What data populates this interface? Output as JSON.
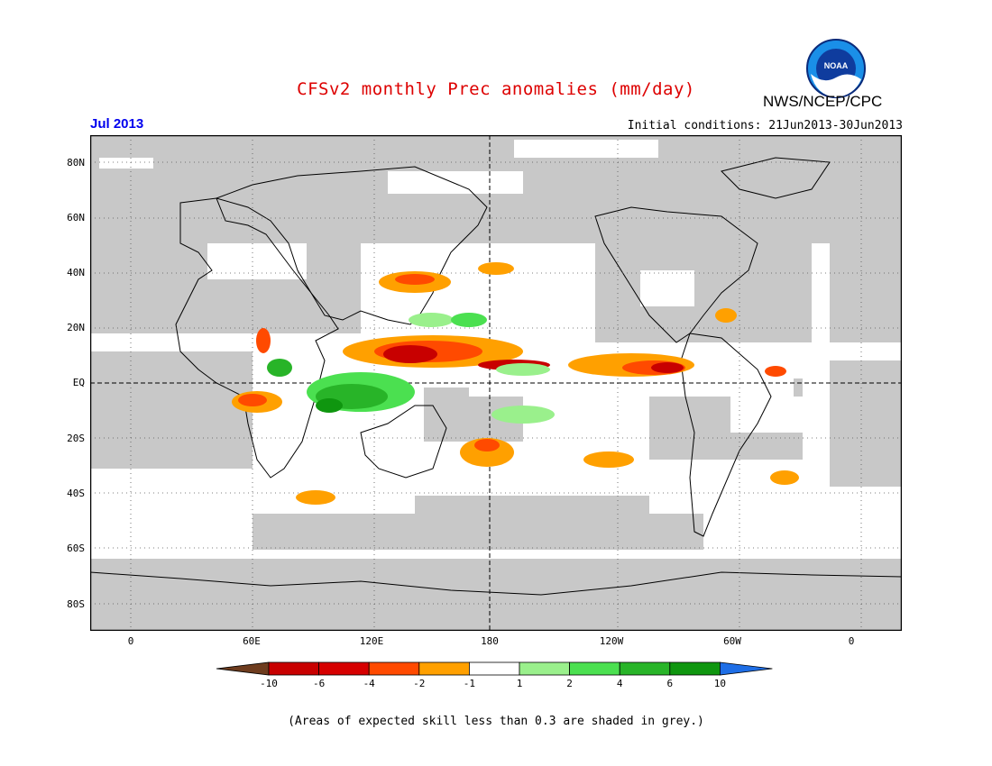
{
  "title": "CFSv2 monthly Prec anomalies (mm/day)",
  "agency": "NWS/NCEP/CPC",
  "logo_text": "NOAA",
  "forecast_month": "Jul 2013",
  "initial_conditions": "Initial conditions: 21Jun2013-30Jun2013",
  "map": {
    "projection": "equirectangular",
    "lon_range": [
      -20,
      380
    ],
    "lat_range": [
      -90,
      90
    ],
    "grid": "dotted every 60 lon / 20 lat",
    "reference_lines": [
      "EQ",
      "180"
    ],
    "mask_color": "#c8c8c8",
    "lat_labels": [
      "80N",
      "60N",
      "40N",
      "20N",
      "EQ",
      "20S",
      "40S",
      "60S",
      "80S"
    ],
    "lon_labels": [
      "0",
      "60E",
      "120E",
      "180",
      "120W",
      "60W",
      "0"
    ]
  },
  "colorbar": {
    "ticks": [
      "-10",
      "-6",
      "-4",
      "-2",
      "-1",
      "1",
      "2",
      "4",
      "6",
      "10"
    ],
    "colors": [
      "#6e3c1e",
      "#c80000",
      "#d60000",
      "#ff4a00",
      "#ffa000",
      "#ffffff",
      "#9af08c",
      "#4be050",
      "#28b428",
      "#0f960f",
      "#1e6ee6"
    ]
  },
  "footnote": "(Areas of expected skill less than 0.3 are shaded in grey.)"
}
